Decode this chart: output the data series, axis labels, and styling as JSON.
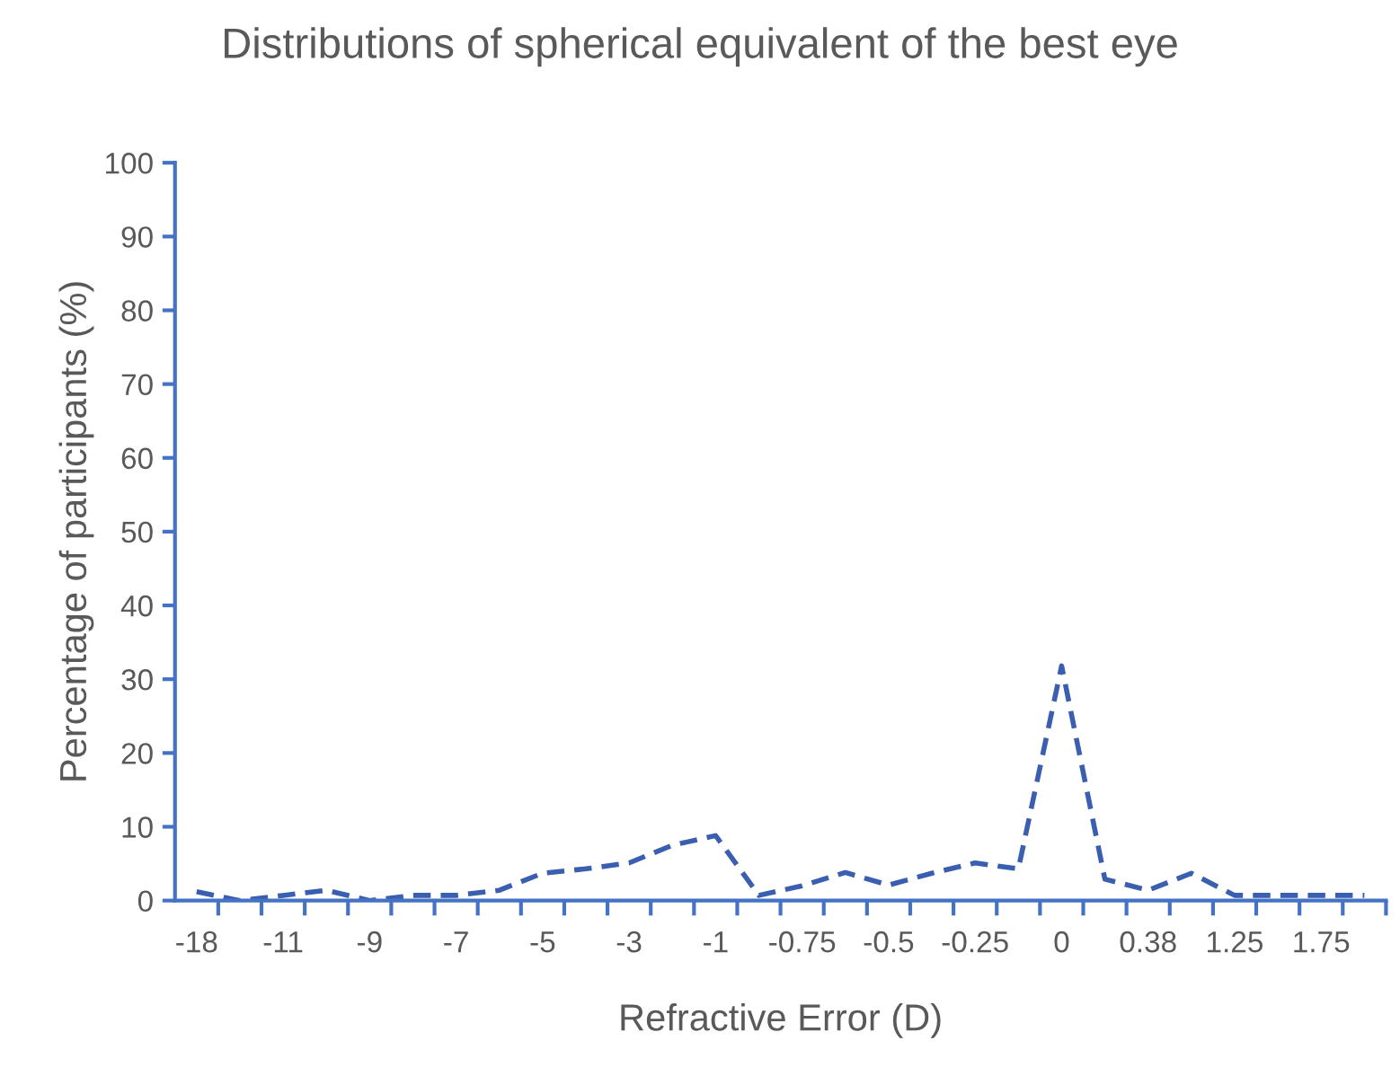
{
  "chart_data": {
    "type": "line",
    "title": "Distributions of spherical equivalent of the best eye",
    "xlabel": "Refractive Error (D)",
    "ylabel": "Percentage of participants (%)",
    "categories": [
      "-18",
      null,
      "-11",
      null,
      "-9",
      null,
      "-7",
      null,
      "-5",
      null,
      "-3",
      null,
      "-1",
      null,
      "-0.75",
      null,
      "-0.5",
      null,
      "-0.25",
      null,
      "0",
      null,
      "0.38",
      null,
      "1.25",
      null,
      "1.75",
      null
    ],
    "series": [
      {
        "color": "#3a5fb0",
        "values": [
          1.2,
          0,
          0.7,
          1.4,
          0,
          0.7,
          0.7,
          1.4,
          3.7,
          4.3,
          5.1,
          7.5,
          8.8,
          0.7,
          2.0,
          3.8,
          2.1,
          3.7,
          5.1,
          4.3,
          31.8,
          2.9,
          1.4,
          3.7,
          0.7,
          0.7,
          0.7,
          0.7
        ]
      }
    ],
    "ylim": [
      0,
      100
    ],
    "yticks": [
      0,
      10,
      20,
      30,
      40,
      50,
      60,
      70,
      80,
      90,
      100
    ],
    "grid": false,
    "marker": "none",
    "line_style": "dashed"
  }
}
